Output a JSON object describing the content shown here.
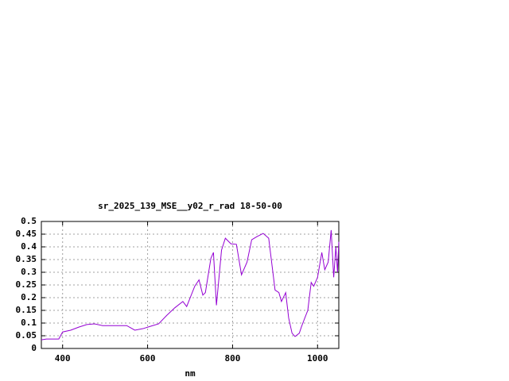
{
  "chart_data": {
    "type": "line",
    "title": "sr_2025_139_MSE__y02_r_rad 18-50-00",
    "xlabel": "nm",
    "x": [
      350,
      362,
      391,
      400,
      419,
      438,
      457,
      475,
      494,
      551,
      570,
      589,
      608,
      626,
      645,
      664,
      683,
      692,
      711,
      721,
      730,
      736,
      749,
      755,
      762,
      774,
      783,
      796,
      809,
      821,
      834,
      845,
      857,
      872,
      885,
      900,
      909,
      915,
      925,
      932,
      940,
      947,
      957,
      962,
      970,
      977,
      985,
      991,
      1000,
      1010,
      1017,
      1025,
      1032,
      1038,
      1043,
      1047,
      1050
    ],
    "series": [
      {
        "name": "sr_2025_139_MSE__y02_r_rad",
        "color": "#9400d3",
        "values": [
          0.034,
          0.037,
          0.037,
          0.065,
          0.072,
          0.084,
          0.094,
          0.097,
          0.09,
          0.09,
          0.072,
          0.078,
          0.088,
          0.097,
          0.13,
          0.16,
          0.185,
          0.165,
          0.245,
          0.27,
          0.21,
          0.22,
          0.355,
          0.378,
          0.17,
          0.387,
          0.434,
          0.412,
          0.41,
          0.29,
          0.34,
          0.428,
          0.44,
          0.453,
          0.434,
          0.23,
          0.22,
          0.185,
          0.22,
          0.12,
          0.06,
          0.047,
          0.06,
          0.085,
          0.12,
          0.15,
          0.26,
          0.245,
          0.28,
          0.378,
          0.31,
          0.34,
          0.466,
          0.28,
          0.4,
          0.3,
          0.42
        ]
      }
    ],
    "xlim": [
      350,
      1050
    ],
    "xticks": [
      400,
      600,
      800,
      1000
    ],
    "ylim": [
      0,
      0.5
    ],
    "yticks": [
      0,
      0.05,
      0.1,
      0.15,
      0.2,
      0.25,
      0.3,
      0.35,
      0.4,
      0.45,
      0.5
    ],
    "grid": true
  }
}
